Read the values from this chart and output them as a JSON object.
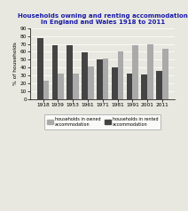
{
  "title": "Households owning and renting accommodation\nin England and Wales 1918 to 2011",
  "years": [
    "1918",
    "1939",
    "1953",
    "1961",
    "1971",
    "1981",
    "1991",
    "2001",
    "2011"
  ],
  "owned": [
    23,
    32,
    32,
    41,
    51,
    60,
    68,
    69,
    64
  ],
  "rented": [
    77,
    68,
    68,
    59,
    50,
    40,
    32,
    31,
    36
  ],
  "owned_color": "#aaaaaa",
  "rented_color": "#444444",
  "ylabel": "% of households",
  "ylim": [
    0,
    90
  ],
  "yticks": [
    0,
    10,
    20,
    30,
    40,
    50,
    60,
    70,
    80,
    90
  ],
  "legend_owned": "households in owned\naccommodation",
  "legend_rented": "households in rented\naccommodation",
  "title_color": "#1a1aaa",
  "background_color": "#e8e8e0"
}
